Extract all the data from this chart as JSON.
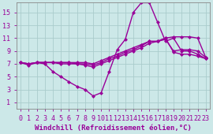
{
  "background_color": "#cce8e8",
  "grid_color": "#aacccc",
  "line_color": "#990099",
  "marker": "D",
  "markersize": 2.5,
  "linewidth": 1.0,
  "xlabel": "Windchill (Refroidissement éolien,°C)",
  "xlabel_fontsize": 6.5,
  "tick_fontsize": 6.0,
  "ylabel_ticks": [
    1,
    3,
    5,
    7,
    9,
    11,
    13,
    15
  ],
  "xlim": [
    -0.5,
    23.5
  ],
  "ylim": [
    0,
    16.5
  ],
  "series1_x": [
    0,
    1,
    2,
    3,
    4,
    5,
    6,
    7,
    8,
    9,
    10,
    11,
    12,
    13,
    14,
    15,
    16,
    17,
    18,
    19,
    20,
    21,
    22,
    23
  ],
  "series1_y": [
    7.2,
    6.8,
    7.2,
    7.0,
    5.8,
    5.0,
    4.2,
    3.5,
    3.0,
    2.0,
    2.5,
    5.8,
    9.2,
    10.8,
    15.0,
    16.5,
    16.5,
    13.5,
    10.5,
    11.0,
    9.0,
    9.0,
    8.5,
    7.8
  ],
  "series2_x": [
    0,
    1,
    2,
    3,
    4,
    5,
    6,
    7,
    8,
    9,
    10,
    11,
    12,
    13,
    14,
    15,
    16,
    17,
    18,
    19,
    20,
    21,
    22,
    23
  ],
  "series2_y": [
    7.2,
    7.0,
    7.2,
    7.2,
    7.2,
    7.0,
    7.0,
    7.0,
    6.8,
    6.5,
    7.0,
    7.5,
    8.0,
    8.5,
    9.0,
    9.5,
    10.2,
    10.5,
    11.0,
    11.2,
    11.2,
    11.2,
    11.0,
    8.0
  ],
  "series3_x": [
    0,
    1,
    2,
    3,
    4,
    5,
    6,
    7,
    8,
    9,
    10,
    11,
    12,
    13,
    14,
    15,
    16,
    17,
    18,
    19,
    20,
    21,
    22,
    23
  ],
  "series3_y": [
    7.2,
    7.0,
    7.2,
    7.2,
    7.2,
    7.2,
    7.2,
    7.0,
    7.0,
    6.8,
    7.2,
    7.8,
    8.2,
    8.8,
    9.2,
    9.8,
    10.5,
    10.5,
    10.8,
    9.0,
    9.2,
    9.2,
    9.0,
    8.0
  ],
  "series4_x": [
    0,
    1,
    2,
    3,
    4,
    5,
    6,
    7,
    8,
    9,
    10,
    11,
    12,
    13,
    14,
    15,
    16,
    17,
    18,
    19,
    20,
    21,
    22,
    23
  ],
  "series4_y": [
    7.2,
    7.0,
    7.2,
    7.2,
    7.2,
    7.2,
    7.2,
    7.2,
    7.2,
    7.0,
    7.5,
    8.0,
    8.5,
    9.0,
    9.5,
    10.0,
    10.5,
    10.5,
    11.0,
    8.8,
    8.5,
    8.5,
    8.2,
    7.8
  ]
}
